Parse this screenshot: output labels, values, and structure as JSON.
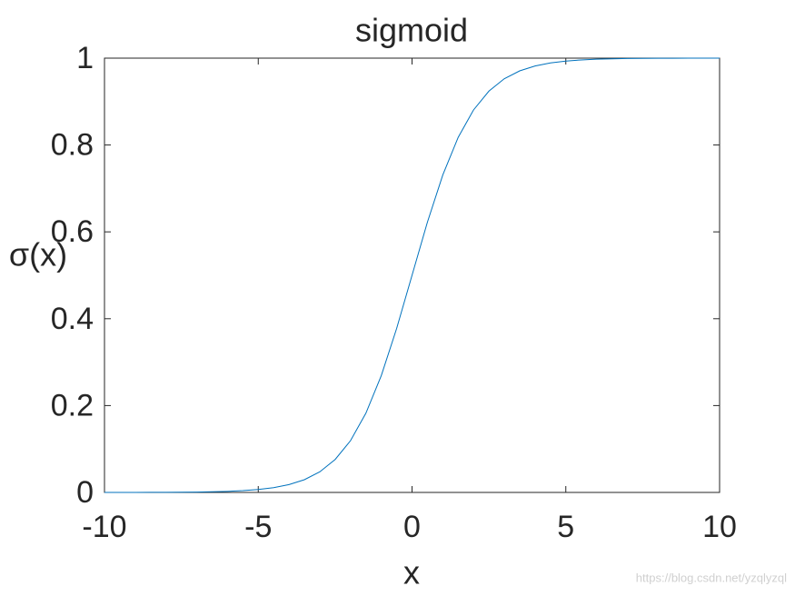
{
  "chart_data": {
    "type": "line",
    "title": "sigmoid",
    "xlabel": "x",
    "ylabel": "σ(x)",
    "x": [
      -10,
      -9.5,
      -9,
      -8.5,
      -8,
      -7.5,
      -7,
      -6.5,
      -6,
      -5.5,
      -5,
      -4.5,
      -4,
      -3.5,
      -3,
      -2.5,
      -2,
      -1.5,
      -1,
      -0.5,
      0,
      0.5,
      1,
      1.5,
      2,
      2.5,
      3,
      3.5,
      4,
      4.5,
      5,
      5.5,
      6,
      6.5,
      7,
      7.5,
      8,
      8.5,
      9,
      9.5,
      10
    ],
    "values": [
      5e-05,
      7e-05,
      0.00012,
      0.0002,
      0.00034,
      0.00055,
      0.00091,
      0.0015,
      0.00247,
      0.00407,
      0.00669,
      0.01099,
      0.01799,
      0.02931,
      0.04743,
      0.07586,
      0.1192,
      0.18243,
      0.26894,
      0.37754,
      0.5,
      0.62246,
      0.73106,
      0.81757,
      0.8808,
      0.92414,
      0.95257,
      0.97069,
      0.98201,
      0.98901,
      0.99331,
      0.99593,
      0.99753,
      0.9985,
      0.99909,
      0.99945,
      0.99966,
      0.9998,
      0.99988,
      0.99993,
      0.99995
    ],
    "color": "#0072bd",
    "xlim": [
      -10,
      10
    ],
    "xticks": [
      -10,
      -5,
      0,
      5,
      10
    ],
    "ylim": [
      0,
      1
    ],
    "yticks": [
      0,
      0.2,
      0.4,
      0.6,
      0.8,
      1
    ],
    "grid": false,
    "watermark": "https://blog.csdn.net/yzqlyzql"
  }
}
